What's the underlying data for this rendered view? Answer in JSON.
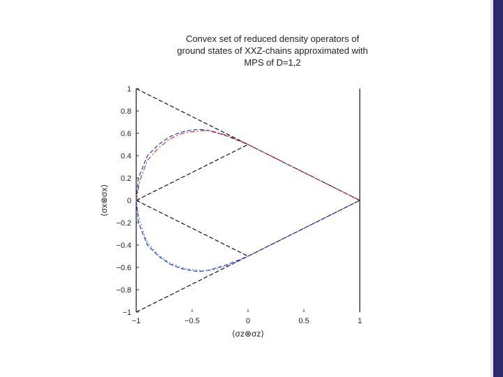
{
  "title_lines": [
    "Convex set of reduced density operators of",
    "ground states of XXZ-chains approximated with",
    "MPS of D=1,2"
  ],
  "theme": {
    "sidebar_color": "#2e2a6e",
    "black_line": "#111111",
    "blue_line": "#1f3fbf",
    "red_line": "#cc3333"
  },
  "chart_data": {
    "type": "line",
    "title": "Convex set of reduced density operators of ground states of XXZ-chains approximated with MPS of D=1,2",
    "xlabel": "⟨σz⊗σz⟩",
    "ylabel": "⟨σx⊗σx⟩",
    "xlim": [
      -1,
      1
    ],
    "ylim": [
      -1,
      1
    ],
    "x_ticks": [
      -1,
      -0.5,
      0,
      0.5,
      1
    ],
    "x_tick_labels": [
      "−1",
      "−0.5",
      "0",
      "0.5",
      "1"
    ],
    "y_ticks": [
      1,
      0.8,
      0.6,
      0.4,
      0.2,
      0,
      -0.2,
      -0.4,
      -0.6,
      -0.8,
      -1
    ],
    "y_tick_labels": [
      "1",
      "0.8",
      "0.6",
      "0.4",
      "0.2",
      "0",
      "−0.2",
      "−0.4",
      "−0.6",
      "−0.8",
      "−1"
    ],
    "series": [
      {
        "color": "#111111",
        "style": "dashed",
        "x": [
          -1,
          1
        ],
        "y": [
          1,
          0
        ]
      },
      {
        "color": "#111111",
        "style": "dashed",
        "x": [
          -1,
          1
        ],
        "y": [
          -1,
          0
        ]
      },
      {
        "color": "#111111",
        "style": "dashed",
        "x": [
          -1,
          0
        ],
        "y": [
          0,
          0.5
        ]
      },
      {
        "color": "#111111",
        "style": "dashed",
        "x": [
          -1,
          0
        ],
        "y": [
          0,
          -0.5
        ]
      },
      {
        "color": "#111111",
        "style": "solid",
        "x": [
          -1,
          -1
        ],
        "y": [
          1,
          -1
        ]
      },
      {
        "color": "#111111",
        "style": "solid",
        "x": [
          1,
          1
        ],
        "y": [
          1,
          -1
        ]
      },
      {
        "color": "#1f3fbf",
        "style": "dashed",
        "x": [
          -1,
          -0.98,
          -0.9,
          -0.8,
          -0.7,
          -0.6,
          -0.5,
          -0.45,
          -0.4,
          -0.35,
          -0.3,
          -0.2,
          -0.1,
          0,
          0.5,
          1
        ],
        "y": [
          0,
          0.2,
          0.4,
          0.5,
          0.57,
          0.61,
          0.63,
          0.635,
          0.633,
          0.625,
          0.61,
          0.58,
          0.54,
          0.5,
          0.25,
          0
        ]
      },
      {
        "color": "#cc3333",
        "style": "dashdot",
        "x": [
          -1,
          -0.97,
          -0.9,
          -0.8,
          -0.7,
          -0.6,
          -0.5,
          -0.4,
          -0.35,
          -0.3,
          -0.2,
          -0.1,
          0,
          0.5,
          1
        ],
        "y": [
          0,
          0.17,
          0.36,
          0.47,
          0.55,
          0.595,
          0.615,
          0.625,
          0.623,
          0.615,
          0.585,
          0.545,
          0.5,
          0.25,
          0
        ]
      },
      {
        "color": "#1f3fbf",
        "style": "dashed",
        "x": [
          -1,
          -0.98,
          -0.9,
          -0.8,
          -0.7,
          -0.6,
          -0.5,
          -0.45,
          -0.4,
          -0.35,
          -0.3,
          -0.2,
          -0.1,
          0,
          0.5,
          1
        ],
        "y": [
          0,
          -0.2,
          -0.4,
          -0.5,
          -0.57,
          -0.61,
          -0.63,
          -0.635,
          -0.633,
          -0.625,
          -0.61,
          -0.58,
          -0.54,
          -0.5,
          -0.25,
          0
        ]
      },
      {
        "color": "#5a7ad8",
        "style": "dotted",
        "x": [
          -1,
          -0.97,
          -0.9,
          -0.8,
          -0.7,
          -0.6,
          -0.5,
          -0.4,
          -0.35,
          -0.3,
          -0.2,
          -0.1,
          0
        ],
        "y": [
          0,
          -0.18,
          -0.38,
          -0.49,
          -0.56,
          -0.6,
          -0.62,
          -0.63,
          -0.628,
          -0.62,
          -0.59,
          -0.55,
          -0.5
        ]
      }
    ]
  }
}
